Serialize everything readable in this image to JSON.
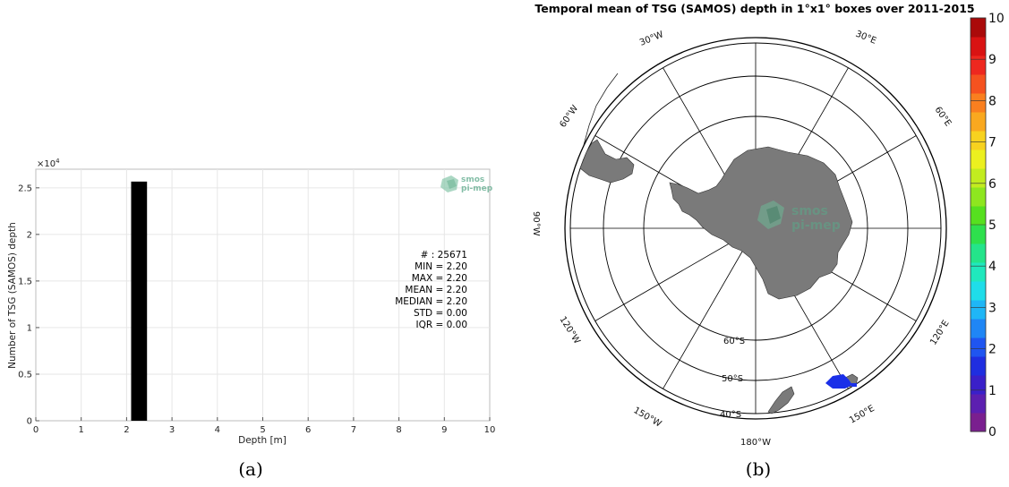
{
  "chart_data": [
    {
      "type": "bar",
      "panel_label": "(a)",
      "xlabel": "Depth [m]",
      "ylabel": "Number of TSG (SAMOS) depth",
      "y_exponent": "×10",
      "y_exponent_power": "4",
      "xlim": [
        0,
        10
      ],
      "ylim": [
        0,
        2.7
      ],
      "xticks": [
        "0",
        "1",
        "2",
        "3",
        "4",
        "5",
        "6",
        "7",
        "8",
        "9",
        "10"
      ],
      "yticks": [
        "0",
        "0.5",
        "1",
        "1.5",
        "2",
        "2.5"
      ],
      "grid": true,
      "bars": [
        {
          "x_start": 2.1,
          "x_end": 2.45,
          "value": 2.5671
        }
      ],
      "bar_color": "#000000",
      "stats": [
        "# : 25671",
        "MIN = 2.20",
        "MAX =  2.20",
        "MEAN = 2.20",
        "MEDIAN = 2.20",
        "STD = 0.00",
        "IQR = 0.00"
      ],
      "logo": [
        "smos",
        "pi-mep"
      ]
    },
    {
      "type": "heatmap",
      "panel_label": "(b)",
      "title": "Temporal mean of TSG (SAMOS) depth in 1°x1° boxes over 2011-2015",
      "projection": "south polar stereographic",
      "longitude_labels": [
        "30°W",
        "30°E",
        "60°W",
        "60°E",
        "90°W",
        "120°W",
        "120°E",
        "150°W",
        "150°E",
        "180°W"
      ],
      "latitude_labels": [
        "60°S",
        "50°S",
        "40°S"
      ],
      "colorbar": {
        "range": [
          0,
          10
        ],
        "ticks": [
          "0",
          "1",
          "2",
          "3",
          "4",
          "5",
          "6",
          "7",
          "8",
          "9",
          "10"
        ],
        "colors": [
          "#7a1f8f",
          "#5c1fb0",
          "#3a20c9",
          "#1f2ee0",
          "#1f55f0",
          "#1f86f5",
          "#1fb6f6",
          "#1fdde9",
          "#20e8bd",
          "#24e48a",
          "#2ee04d",
          "#56e01f",
          "#8ee61f",
          "#c2ec1f",
          "#ecf01f",
          "#f7d21f",
          "#f9a81f",
          "#f97f1f",
          "#f5521f",
          "#ee281f",
          "#d91313",
          "#aa0a0a"
        ]
      },
      "land_color": "#7a7a7a",
      "data_color": "#1a2fe8",
      "logo": [
        "smos",
        "pi-mep"
      ]
    }
  ]
}
